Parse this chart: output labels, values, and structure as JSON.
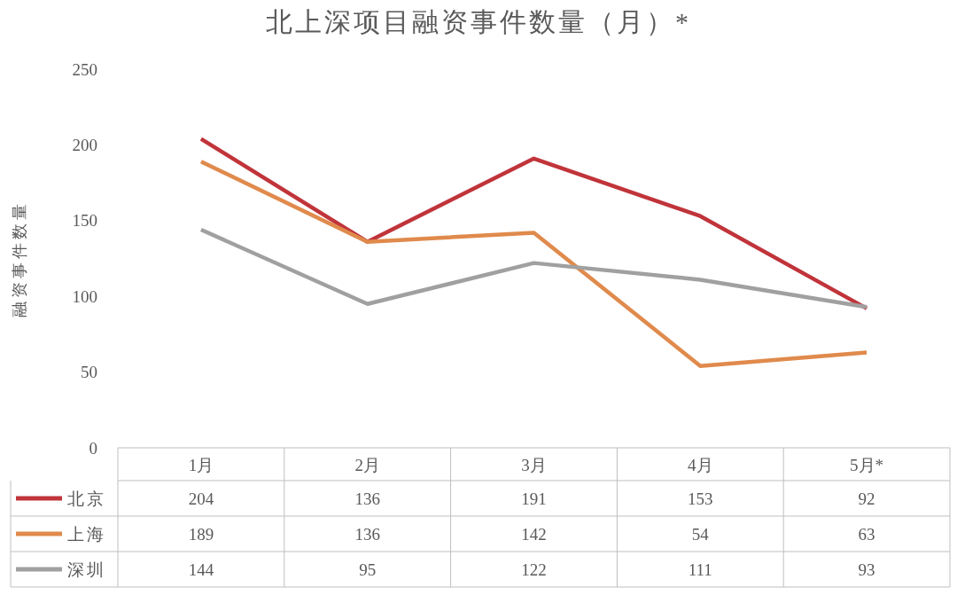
{
  "chart_data": {
    "type": "line",
    "title": "北上深项目融资事件数量（月）*",
    "ylabel": "融资事件数量",
    "categories": [
      "1月",
      "2月",
      "3月",
      "4月",
      "5月*"
    ],
    "series": [
      {
        "name": "北京",
        "color": "#c0343a",
        "values": [
          204,
          136,
          191,
          153,
          92
        ]
      },
      {
        "name": "上海",
        "color": "#e08a4c",
        "values": [
          189,
          136,
          142,
          54,
          63
        ]
      },
      {
        "name": "深圳",
        "color": "#a0a0a0",
        "values": [
          144,
          95,
          122,
          111,
          93
        ]
      }
    ],
    "ylim": [
      0,
      250
    ],
    "yticks": [
      0,
      50,
      100,
      150,
      200,
      250
    ],
    "grid": false,
    "legend": "bottom",
    "data_labels": true,
    "marker": "none",
    "line_style": "solid"
  }
}
